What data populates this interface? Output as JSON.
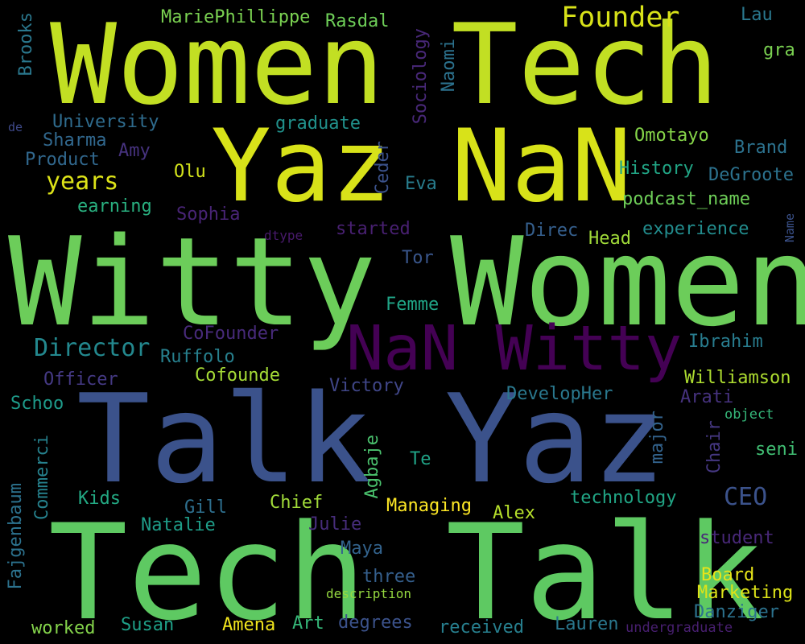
{
  "words": [
    {
      "text": "Women Tech",
      "color": "#c2df23"
    },
    {
      "text": "Witty Women",
      "color": "#6ccd5a"
    },
    {
      "text": "Talk Yaz",
      "color": "#3b528b"
    },
    {
      "text": "Tech Talk",
      "color": "#5ec962"
    },
    {
      "text": "Yaz NaN",
      "color": "#d8e219"
    },
    {
      "text": "NaN Witty",
      "color": "#440154"
    },
    {
      "text": "Founder",
      "color": "#d8e219"
    },
    {
      "text": "MariePhillippe",
      "color": "#7ad151"
    },
    {
      "text": "Rasdal",
      "color": "#6ece58"
    },
    {
      "text": "Lau",
      "color": "#2a788e"
    },
    {
      "text": "gra",
      "color": "#7ad151"
    },
    {
      "text": "Brooks",
      "color": "#2a788e"
    },
    {
      "text": "Sociology",
      "color": "#482878"
    },
    {
      "text": "Naomi",
      "color": "#2c728e"
    },
    {
      "text": "de",
      "color": "#3e4989"
    },
    {
      "text": "University",
      "color": "#2f6c8e"
    },
    {
      "text": "graduate",
      "color": "#21918c"
    },
    {
      "text": "Omotayo",
      "color": "#86d549"
    },
    {
      "text": "Brand",
      "color": "#2c728e"
    },
    {
      "text": "Sharma",
      "color": "#31688e"
    },
    {
      "text": "Amy",
      "color": "#46327e"
    },
    {
      "text": "Product",
      "color": "#31688e"
    },
    {
      "text": "Ceder",
      "color": "#3b528b"
    },
    {
      "text": "Olu",
      "color": "#d2e21b"
    },
    {
      "text": "History",
      "color": "#21a585"
    },
    {
      "text": "DeGroote",
      "color": "#2c728e"
    },
    {
      "text": "years",
      "color": "#dde318"
    },
    {
      "text": "Eva",
      "color": "#287d8e"
    },
    {
      "text": "podcast_name",
      "color": "#6ece58"
    },
    {
      "text": "earning",
      "color": "#29af7f"
    },
    {
      "text": "Sophia",
      "color": "#482475"
    },
    {
      "text": "dtype",
      "color": "#481a6c"
    },
    {
      "text": "started",
      "color": "#482071"
    },
    {
      "text": "Direc",
      "color": "#355f8d"
    },
    {
      "text": "Head",
      "color": "#a0da39"
    },
    {
      "text": "experience",
      "color": "#228c8d"
    },
    {
      "text": "Name",
      "color": "#3b528b"
    },
    {
      "text": "Tor",
      "color": "#39568c"
    },
    {
      "text": "Femme",
      "color": "#20a486"
    },
    {
      "text": "CoFounder",
      "color": "#472a7a"
    },
    {
      "text": "Director",
      "color": "#23888e"
    },
    {
      "text": "Ruffolo",
      "color": "#27808e"
    },
    {
      "text": "Ibrahim",
      "color": "#287c8e"
    },
    {
      "text": "Officer",
      "color": "#443983"
    },
    {
      "text": "Cofounde",
      "color": "#a5db36"
    },
    {
      "text": "Williamson",
      "color": "#addc30"
    },
    {
      "text": "Victory",
      "color": "#404688"
    },
    {
      "text": "DevelopHer",
      "color": "#2a788e"
    },
    {
      "text": "Arati",
      "color": "#46327e"
    },
    {
      "text": "Schoo",
      "color": "#1e9b8a"
    },
    {
      "text": "object",
      "color": "#35b779"
    },
    {
      "text": "Commerci",
      "color": "#26828e"
    },
    {
      "text": "Agbaje",
      "color": "#4ac16d"
    },
    {
      "text": "Te",
      "color": "#20a386"
    },
    {
      "text": "major",
      "color": "#33638d"
    },
    {
      "text": "Chair",
      "color": "#453781"
    },
    {
      "text": "seni",
      "color": "#40bd72"
    },
    {
      "text": "Fajgenbaum",
      "color": "#2c728e"
    },
    {
      "text": "Kids",
      "color": "#23a983"
    },
    {
      "text": "Chief",
      "color": "#a0da39"
    },
    {
      "text": "CEO",
      "color": "#3b528b"
    },
    {
      "text": "technology",
      "color": "#21a585"
    },
    {
      "text": "Gill",
      "color": "#2e6f8e"
    },
    {
      "text": "Managing",
      "color": "#fde725"
    },
    {
      "text": "Alex",
      "color": "#b5de2b"
    },
    {
      "text": "Natalie",
      "color": "#1f9e89"
    },
    {
      "text": "Julie",
      "color": "#472d7b"
    },
    {
      "text": "student",
      "color": "#482878"
    },
    {
      "text": "Maya",
      "color": "#33638d"
    },
    {
      "text": "three",
      "color": "#355f8d"
    },
    {
      "text": "Board",
      "color": "#e7e419"
    },
    {
      "text": "description",
      "color": "#95d840"
    },
    {
      "text": "Marketing",
      "color": "#dde318"
    },
    {
      "text": "Danziger",
      "color": "#2c728e"
    },
    {
      "text": "worked",
      "color": "#84d44b"
    },
    {
      "text": "Susan",
      "color": "#1fa088"
    },
    {
      "text": "Amena",
      "color": "#f1e51d"
    },
    {
      "text": "Art",
      "color": "#35b779"
    },
    {
      "text": "degrees",
      "color": "#3b528b"
    },
    {
      "text": "received",
      "color": "#277f8e"
    },
    {
      "text": "Lauren",
      "color": "#2a788e"
    },
    {
      "text": "undergraduate",
      "color": "#481f70"
    }
  ]
}
